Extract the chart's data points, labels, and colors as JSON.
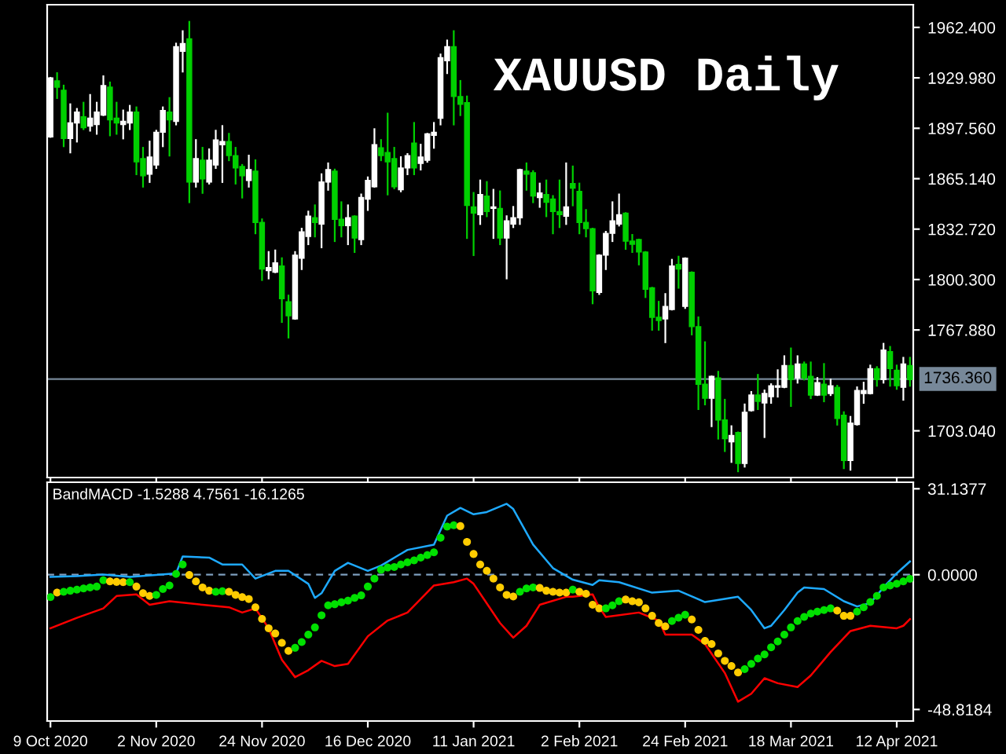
{
  "chart_data": [
    {
      "type": "candlestick",
      "title": "XAUUSD Daily",
      "tick_labels": "y",
      "categories": [
        null,
        null,
        null,
        null,
        null,
        null,
        null,
        null,
        null,
        null,
        null,
        null,
        null,
        null,
        null,
        null,
        null,
        null,
        null,
        null,
        null,
        null,
        null,
        null,
        null,
        null,
        null,
        null,
        null,
        null,
        null,
        null,
        null,
        null,
        null,
        null,
        null,
        null,
        null,
        null,
        null,
        null,
        null,
        null,
        null,
        null,
        null,
        null,
        null,
        null,
        null,
        null,
        null,
        null,
        null,
        null,
        null,
        null,
        null,
        null,
        null,
        null,
        null,
        null,
        null,
        null,
        null,
        null,
        null,
        null,
        null,
        null,
        null,
        null,
        null,
        null,
        null,
        null,
        null,
        null,
        null,
        null,
        null,
        null,
        null,
        null,
        null,
        null,
        null,
        null,
        null,
        null,
        null,
        null,
        null,
        null,
        null,
        null,
        null,
        null,
        null,
        null,
        null,
        null,
        null,
        null,
        null,
        null,
        null,
        null,
        null,
        null,
        null,
        null,
        null,
        null,
        null,
        null,
        null,
        null,
        null,
        null,
        null,
        null,
        null,
        null,
        null,
        null,
        null,
        null,
        null
      ],
      "ohlc": [
        [
          1892,
          1930,
          1892,
          1930
        ],
        [
          1928,
          1933,
          1917,
          1924
        ],
        [
          1922,
          1925,
          1886,
          1891
        ],
        [
          1891,
          1913,
          1882,
          1901
        ],
        [
          1901,
          1910,
          1889,
          1908
        ],
        [
          1905,
          1914,
          1897,
          1898
        ],
        [
          1899,
          1919,
          1896,
          1904
        ],
        [
          1900,
          1914,
          1894,
          1908
        ],
        [
          1906,
          1931,
          1906,
          1925
        ],
        [
          1924,
          1927,
          1893,
          1903
        ],
        [
          1904,
          1914,
          1894,
          1901
        ],
        [
          1900,
          1909,
          1891,
          1902
        ],
        [
          1901,
          1912,
          1897,
          1908
        ],
        [
          1908,
          1911,
          1868,
          1876
        ],
        [
          1878,
          1885,
          1860,
          1867
        ],
        [
          1868,
          1889,
          1863,
          1879
        ],
        [
          1874,
          1896,
          1872,
          1895
        ],
        [
          1895,
          1911,
          1886,
          1909
        ],
        [
          1908,
          1917,
          1880,
          1903
        ],
        [
          1902,
          1952,
          1900,
          1950
        ],
        [
          1947,
          1960,
          1934,
          1952
        ],
        [
          1955,
          1966,
          1850,
          1863
        ],
        [
          1863,
          1890,
          1860,
          1878
        ],
        [
          1877,
          1885,
          1856,
          1865
        ],
        [
          1863,
          1884,
          1862,
          1877
        ],
        [
          1874,
          1896,
          1872,
          1890
        ],
        [
          1887,
          1899,
          1863,
          1889
        ],
        [
          1889,
          1894,
          1877,
          1880
        ],
        [
          1880,
          1885,
          1862,
          1872
        ],
        [
          1873,
          1874,
          1853,
          1867
        ],
        [
          1864,
          1880,
          1860,
          1871
        ],
        [
          1870,
          1877,
          1830,
          1837
        ],
        [
          1837,
          1839,
          1800,
          1807
        ],
        [
          1806,
          1818,
          1801,
          1808
        ],
        [
          1805,
          1819,
          1805,
          1811
        ],
        [
          1809,
          1814,
          1773,
          1788
        ],
        [
          1786,
          1790,
          1763,
          1777
        ],
        [
          1775,
          1818,
          1775,
          1816
        ],
        [
          1814,
          1833,
          1807,
          1831
        ],
        [
          1828,
          1844,
          1823,
          1841
        ],
        [
          1840,
          1848,
          1828,
          1837
        ],
        [
          1836,
          1868,
          1821,
          1863
        ],
        [
          1863,
          1875,
          1858,
          1871
        ],
        [
          1870,
          1871,
          1825,
          1839
        ],
        [
          1839,
          1850,
          1828,
          1835
        ],
        [
          1835,
          1848,
          1823,
          1840
        ],
        [
          1841,
          1841,
          1818,
          1827
        ],
        [
          1826,
          1855,
          1823,
          1853
        ],
        [
          1852,
          1866,
          1845,
          1864
        ],
        [
          1860,
          1897,
          1860,
          1887
        ],
        [
          1885,
          1890,
          1877,
          1880
        ],
        [
          1882,
          1907,
          1855,
          1876
        ],
        [
          1878,
          1885,
          1859,
          1860
        ],
        [
          1858,
          1879,
          1857,
          1872
        ],
        [
          1872,
          1881,
          1868,
          1880
        ],
        [
          1888,
          1901,
          1868,
          1872
        ],
        [
          1875,
          1887,
          1871,
          1879
        ],
        [
          1877,
          1894,
          1876,
          1894
        ],
        [
          1893,
          1901,
          1885,
          1895
        ],
        [
          1904,
          1945,
          1900,
          1943
        ],
        [
          1941,
          1954,
          1933,
          1950
        ],
        [
          1950,
          1960,
          1900,
          1918
        ],
        [
          1918,
          1928,
          1906,
          1913
        ],
        [
          1914,
          1918,
          1827,
          1848
        ],
        [
          1847,
          1856,
          1816,
          1843
        ],
        [
          1842,
          1864,
          1836,
          1855
        ],
        [
          1854,
          1863,
          1841,
          1844
        ],
        [
          1846,
          1858,
          1827,
          1847
        ],
        [
          1846,
          1857,
          1823,
          1827
        ],
        [
          1827,
          1841,
          1801,
          1838
        ],
        [
          1836,
          1847,
          1834,
          1840
        ],
        [
          1840,
          1871,
          1836,
          1871
        ],
        [
          1870,
          1875,
          1858,
          1868
        ],
        [
          1869,
          1870,
          1850,
          1854
        ],
        [
          1853,
          1862,
          1847,
          1856
        ],
        [
          1855,
          1864,
          1841,
          1850
        ],
        [
          1852,
          1854,
          1830,
          1844
        ],
        [
          1844,
          1864,
          1834,
          1842
        ],
        [
          1841,
          1875,
          1836,
          1847
        ],
        [
          1862,
          1873,
          1848,
          1859
        ],
        [
          1857,
          1862,
          1830,
          1837
        ],
        [
          1837,
          1845,
          1828,
          1833
        ],
        [
          1833,
          1833,
          1785,
          1793
        ],
        [
          1792,
          1816,
          1791,
          1816
        ],
        [
          1816,
          1831,
          1807,
          1830
        ],
        [
          1830,
          1850,
          1825,
          1838
        ],
        [
          1836,
          1855,
          1835,
          1842
        ],
        [
          1843,
          1843,
          1820,
          1825
        ],
        [
          1825,
          1829,
          1818,
          1823
        ],
        [
          1826,
          1826,
          1810,
          1818
        ],
        [
          1818,
          1818,
          1789,
          1794
        ],
        [
          1795,
          1795,
          1768,
          1776
        ],
        [
          1776,
          1786,
          1768,
          1774
        ],
        [
          1775,
          1791,
          1760,
          1783
        ],
        [
          1781,
          1813,
          1781,
          1809
        ],
        [
          1810,
          1815,
          1795,
          1807
        ],
        [
          1783,
          1814,
          1782,
          1814
        ],
        [
          1805,
          1805,
          1765,
          1770
        ],
        [
          1770,
          1776,
          1717,
          1733
        ],
        [
          1733,
          1760,
          1720,
          1724
        ],
        [
          1724,
          1738,
          1706,
          1738
        ],
        [
          1737,
          1741,
          1698,
          1710
        ],
        [
          1710,
          1723,
          1690,
          1698
        ],
        [
          1696,
          1706,
          1683,
          1700
        ],
        [
          1702,
          1702,
          1677,
          1682
        ],
        [
          1682,
          1720,
          1680,
          1715
        ],
        [
          1716,
          1728,
          1716,
          1726
        ],
        [
          1726,
          1739,
          1717,
          1722
        ],
        [
          1721,
          1729,
          1699,
          1727
        ],
        [
          1725,
          1733,
          1721,
          1732
        ],
        [
          1731,
          1742,
          1725,
          1732
        ],
        [
          1731,
          1751,
          1731,
          1745
        ],
        [
          1745,
          1756,
          1719,
          1736
        ],
        [
          1737,
          1751,
          1734,
          1746
        ],
        [
          1746,
          1747,
          1736,
          1737
        ],
        [
          1738,
          1747,
          1724,
          1726
        ],
        [
          1726,
          1737,
          1726,
          1734
        ],
        [
          1733,
          1746,
          1722,
          1726
        ],
        [
          1727,
          1736,
          1726,
          1732
        ],
        [
          1731,
          1732,
          1707,
          1711
        ],
        [
          1713,
          1715,
          1679,
          1684
        ],
        [
          1684,
          1712,
          1678,
          1708
        ],
        [
          1707,
          1731,
          1707,
          1729
        ],
        [
          1727,
          1734,
          1721,
          1729
        ],
        [
          1727,
          1745,
          1727,
          1743
        ],
        [
          1743,
          1744,
          1732,
          1736
        ],
        [
          1736,
          1759,
          1734,
          1755
        ],
        [
          1754,
          1757,
          1732,
          1743
        ],
        [
          1742,
          1745,
          1730,
          1732
        ],
        [
          1731,
          1750,
          1723,
          1746
        ],
        [
          1745,
          1750,
          1732,
          1736
        ]
      ],
      "colors": [
        "#ffffff",
        "#00d000",
        "#00d000",
        "#ffffff",
        "#ffffff",
        "#00d000",
        "#ffffff",
        "#ffffff",
        "#ffffff",
        "#00d000",
        "#00d000",
        "#ffffff",
        "#ffffff",
        "#00d000",
        "#00d000",
        "#ffffff",
        "#ffffff",
        "#ffffff",
        "#00d000",
        "#ffffff",
        "#ffffff",
        "#00d000",
        "#ffffff",
        "#00d000",
        "#ffffff",
        "#ffffff",
        "#ffffff",
        "#00d000",
        "#00d000",
        "#00d000",
        "#ffffff",
        "#00d000",
        "#00d000",
        "#ffffff",
        "#ffffff",
        "#00d000",
        "#00d000",
        "#ffffff",
        "#ffffff",
        "#ffffff",
        "#00d000",
        "#ffffff",
        "#ffffff",
        "#00d000",
        "#00d000",
        "#ffffff",
        "#00d000",
        "#ffffff",
        "#ffffff",
        "#ffffff",
        "#00d000",
        "#00d000",
        "#00d000",
        "#ffffff",
        "#ffffff",
        "#00d000",
        "#ffffff",
        "#ffffff",
        "#ffffff",
        "#ffffff",
        "#ffffff",
        "#00d000",
        "#00d000",
        "#00d000",
        "#00d000",
        "#ffffff",
        "#00d000",
        "#ffffff",
        "#00d000",
        "#ffffff",
        "#ffffff",
        "#ffffff",
        "#00d000",
        "#00d000",
        "#ffffff",
        "#00d000",
        "#00d000",
        "#00d000",
        "#ffffff",
        "#00d000",
        "#00d000",
        "#00d000",
        "#00d000",
        "#ffffff",
        "#ffffff",
        "#ffffff",
        "#ffffff",
        "#00d000",
        "#00d000",
        "#00d000",
        "#00d000",
        "#00d000",
        "#00d000",
        "#ffffff",
        "#ffffff",
        "#00d000",
        "#ffffff",
        "#00d000",
        "#00d000",
        "#00d000",
        "#ffffff",
        "#00d000",
        "#00d000",
        "#ffffff",
        "#00d000",
        "#ffffff",
        "#ffffff",
        "#00d000",
        "#ffffff",
        "#ffffff",
        "#ffffff",
        "#ffffff",
        "#00d000",
        "#ffffff",
        "#00d000",
        "#00d000",
        "#ffffff",
        "#00d000",
        "#ffffff",
        "#00d000",
        "#00d000",
        "#ffffff",
        "#ffffff",
        "#ffffff",
        "#ffffff",
        "#00d000",
        "#ffffff",
        "#00d000",
        "#00d000",
        "#ffffff",
        "#00d000"
      ],
      "ylim": [
        1673,
        1977
      ],
      "yticks": [
        {
          "value": 1962.4,
          "label": "1962.400"
        },
        {
          "value": 1929.98,
          "label": "1929.980"
        },
        {
          "value": 1897.56,
          "label": "1897.560"
        },
        {
          "value": 1865.14,
          "label": "1865.140"
        },
        {
          "value": 1832.72,
          "label": "1832.720"
        },
        {
          "value": 1800.3,
          "label": "1800.300"
        },
        {
          "value": 1767.88,
          "label": "1767.880"
        },
        {
          "value": 1703.04,
          "label": "1703.040"
        }
      ],
      "ref_lines": [
        {
          "axis": "y",
          "value": 1736.36,
          "label": "1736.360",
          "color": "#778899",
          "line_style": "solid"
        }
      ]
    },
    {
      "type": "scatter",
      "title": "BandMACD -1.5288 4.7561 -16.1265",
      "categories": [
        "9 Oct 2020",
        null,
        null,
        null,
        null,
        null,
        null,
        null,
        null,
        null,
        null,
        null,
        null,
        null,
        null,
        null,
        "2 Nov 2020",
        null,
        null,
        null,
        null,
        null,
        null,
        null,
        null,
        null,
        null,
        null,
        null,
        null,
        null,
        null,
        "24 Nov 2020",
        null,
        null,
        null,
        null,
        null,
        null,
        null,
        null,
        null,
        null,
        null,
        null,
        null,
        null,
        null,
        "16 Dec 2020",
        null,
        null,
        null,
        null,
        null,
        null,
        null,
        null,
        null,
        null,
        null,
        null,
        null,
        null,
        null,
        "11 Jan 2021",
        null,
        null,
        null,
        null,
        null,
        null,
        null,
        null,
        null,
        null,
        null,
        null,
        null,
        null,
        null,
        "2 Feb 2021",
        null,
        null,
        null,
        null,
        null,
        null,
        null,
        null,
        null,
        null,
        null,
        null,
        null,
        null,
        null,
        "24 Feb 2021",
        null,
        null,
        null,
        null,
        null,
        null,
        null,
        null,
        null,
        null,
        null,
        null,
        null,
        null,
        null,
        "18 Mar 2021",
        null,
        null,
        null,
        null,
        null,
        null,
        null,
        null,
        null,
        null,
        null,
        null,
        null,
        null,
        null,
        "12 Apr 2021",
        null,
        null
      ],
      "ylim": [
        -53,
        33.5
      ],
      "yticks": [
        {
          "value": 31.1377,
          "label": "31.1377"
        },
        {
          "value": 0,
          "label": "0.0000"
        },
        {
          "value": -48.8184,
          "label": "-48.8184"
        }
      ],
      "ref_lines": [
        {
          "axis": "y",
          "value": 0,
          "label": null,
          "color": "#7f9fbf",
          "line_style": "dashed"
        }
      ],
      "series": [
        {
          "type": "line",
          "color": "#1eaaff",
          "values": [
            -0.8,
            null,
            null,
            null,
            -0.5,
            null,
            null,
            null,
            0.1,
            null,
            null,
            null,
            -0.8,
            null,
            null,
            null,
            -0.1,
            null,
            null,
            0.5,
            6.6,
            null,
            null,
            null,
            6.2,
            null,
            3.7,
            null,
            null,
            3.7,
            null,
            -1.4,
            null,
            null,
            1.4,
            null,
            1.4,
            null,
            null,
            -3.3,
            -8.4,
            -6.7,
            null,
            1.4,
            null,
            4.3,
            null,
            null,
            1.4,
            null,
            3.3,
            null,
            null,
            null,
            9.0,
            null,
            null,
            null,
            10.9,
            null,
            21.4,
            null,
            24.2,
            null,
            21.9,
            null,
            22.7,
            null,
            null,
            25.7,
            23.8,
            null,
            null,
            10.9,
            null,
            null,
            2.4,
            null,
            null,
            -1.8,
            null,
            null,
            -3.7,
            -2.0,
            null,
            null,
            -2.7,
            null,
            null,
            null,
            null,
            -6.5,
            null,
            null,
            null,
            -5.8,
            null,
            null,
            null,
            -9.9,
            null,
            null,
            null,
            null,
            -8.0,
            null,
            -12.8,
            null,
            -19.4,
            -18.5,
            null,
            -12.8,
            null,
            -6.5,
            -4.6,
            null,
            null,
            -5.2,
            null,
            null,
            -9.6,
            null,
            -11.5,
            null,
            -10.3,
            null,
            -4.6,
            null,
            0.5,
            null,
            4.8
          ]
        },
        {
          "type": "line",
          "color": "#ff0000",
          "values": [
            -19.4,
            null,
            null,
            null,
            -15.6,
            null,
            null,
            null,
            -12.2,
            null,
            -7.7,
            null,
            null,
            -7.1,
            null,
            -10.9,
            null,
            null,
            -9.6,
            null,
            null,
            null,
            null,
            -10.9,
            null,
            null,
            null,
            -11.8,
            null,
            -13.7,
            null,
            -12.2,
            null,
            -19.4,
            null,
            -30.8,
            null,
            -37.1,
            null,
            -34.6,
            null,
            -31.2,
            null,
            -33.1,
            null,
            -32.3,
            null,
            null,
            -22.3,
            null,
            null,
            -16.6,
            null,
            null,
            -13.7,
            null,
            null,
            null,
            -3.9,
            null,
            null,
            -2.7,
            null,
            -1.4,
            -3.3,
            null,
            null,
            null,
            -17.5,
            null,
            -22.8,
            null,
            -18.5,
            null,
            -10.9,
            null,
            null,
            null,
            -8.0,
            -8.0,
            null,
            null,
            -7.1,
            -11.8,
            -15.3,
            null,
            null,
            null,
            null,
            -13.7,
            null,
            null,
            -16.6,
            -21.7,
            null,
            null,
            null,
            -21.7,
            null,
            -25.1,
            null,
            null,
            -35.6,
            null,
            -46.0,
            null,
            -43.1,
            null,
            -37.5,
            null,
            -39.3,
            null,
            null,
            -40.7,
            null,
            -36.5,
            null,
            null,
            -28.0,
            null,
            null,
            -20.4,
            null,
            null,
            -18.5,
            null,
            null,
            null,
            -19.4,
            -18.5,
            -16.1
          ]
        },
        {
          "type": "scatter",
          "marker": "circle",
          "values": [
            -8.1,
            -6.5,
            -6.2,
            -5.8,
            -5.4,
            -5.0,
            -4.6,
            -4.3,
            -2.0,
            -2.4,
            -2.6,
            -2.7,
            -2.7,
            -4.3,
            -6.7,
            -7.7,
            -7.3,
            -5.2,
            -3.9,
            0.3,
            3.7,
            -0.1,
            -2.4,
            -4.6,
            -5.8,
            -6.2,
            -6.0,
            -6.2,
            -7.3,
            -8.1,
            -8.8,
            -11.8,
            -16.0,
            -19.4,
            -21.3,
            -24.7,
            -27.6,
            -26.5,
            -24.4,
            -21.7,
            -19.1,
            -14.7,
            -11.1,
            -10.7,
            -10.0,
            -9.4,
            -8.4,
            -7.5,
            -4.3,
            -1.4,
            1.8,
            2.6,
            2.8,
            3.7,
            4.5,
            5.2,
            6.2,
            7.1,
            8.1,
            13.4,
            17.4,
            17.9,
            17.6,
            11.9,
            7.5,
            3.7,
            1.4,
            -1.4,
            -4.6,
            -7.3,
            -7.9,
            -6.2,
            -5.0,
            -4.6,
            -4.8,
            -5.8,
            -6.2,
            -6.5,
            -6.5,
            -5.4,
            -6.2,
            -6.9,
            -10.9,
            -12.2,
            -12.2,
            -11.1,
            -9.6,
            -9.0,
            -9.6,
            -10.0,
            -12.2,
            -14.9,
            -17.5,
            -18.7,
            -16.8,
            -15.6,
            -14.5,
            -16.2,
            -20.0,
            -24.0,
            -25.1,
            -28.5,
            -31.2,
            -33.1,
            -35.4,
            -34.2,
            -32.3,
            -30.4,
            -28.9,
            -26.3,
            -24.2,
            -21.7,
            -19.1,
            -16.8,
            -15.3,
            -14.1,
            -13.4,
            -12.8,
            -12.2,
            -13.0,
            -14.9,
            -14.9,
            -13.4,
            -11.8,
            -9.9,
            -7.7,
            -4.6,
            -3.9,
            -3.3,
            -2.4,
            -1.5
          ],
          "colors": [
            "#00e000",
            "#ffcc00",
            "#00e000",
            "#00e000",
            "#00e000",
            "#00e000",
            "#00e000",
            "#00e000",
            "#00e000",
            "#ffcc00",
            "#ffcc00",
            "#ffcc00",
            "#00e000",
            "#ffcc00",
            "#ffcc00",
            "#ffcc00",
            "#00e000",
            "#00e000",
            "#00e000",
            "#00e000",
            "#00e000",
            "#ffcc00",
            "#ffcc00",
            "#ffcc00",
            "#ffcc00",
            "#00e000",
            "#00e000",
            "#ffcc00",
            "#ffcc00",
            "#ffcc00",
            "#ffcc00",
            "#ffcc00",
            "#ffcc00",
            "#ffcc00",
            "#ffcc00",
            "#ffcc00",
            "#ffcc00",
            "#00e000",
            "#00e000",
            "#00e000",
            "#00e000",
            "#00e000",
            "#00e000",
            "#00e000",
            "#00e000",
            "#00e000",
            "#00e000",
            "#00e000",
            "#00e000",
            "#00e000",
            "#00e000",
            "#00e000",
            "#00e000",
            "#00e000",
            "#00e000",
            "#00e000",
            "#00e000",
            "#00e000",
            "#00e000",
            "#00e000",
            "#00e000",
            "#00e000",
            "#ffcc00",
            "#ffcc00",
            "#ffcc00",
            "#ffcc00",
            "#ffcc00",
            "#ffcc00",
            "#ffcc00",
            "#ffcc00",
            "#ffcc00",
            "#00e000",
            "#00e000",
            "#00e000",
            "#ffcc00",
            "#ffcc00",
            "#ffcc00",
            "#ffcc00",
            "#ffcc00",
            "#00e000",
            "#ffcc00",
            "#ffcc00",
            "#ffcc00",
            "#ffcc00",
            "#00e000",
            "#00e000",
            "#00e000",
            "#ffcc00",
            "#ffcc00",
            "#ffcc00",
            "#ffcc00",
            "#ffcc00",
            "#ffcc00",
            "#ffcc00",
            "#00e000",
            "#00e000",
            "#00e000",
            "#ffcc00",
            "#ffcc00",
            "#ffcc00",
            "#ffcc00",
            "#ffcc00",
            "#ffcc00",
            "#ffcc00",
            "#ffcc00",
            "#00e000",
            "#00e000",
            "#00e000",
            "#00e000",
            "#00e000",
            "#00e000",
            "#00e000",
            "#00e000",
            "#00e000",
            "#00e000",
            "#00e000",
            "#00e000",
            "#00e000",
            "#00e000",
            "#ffcc00",
            "#ffcc00",
            "#ffcc00",
            "#00e000",
            "#00e000",
            "#00e000",
            "#00e000",
            "#00e000",
            "#00e000",
            "#00e000",
            "#00e000",
            "#00e000"
          ]
        }
      ]
    }
  ]
}
